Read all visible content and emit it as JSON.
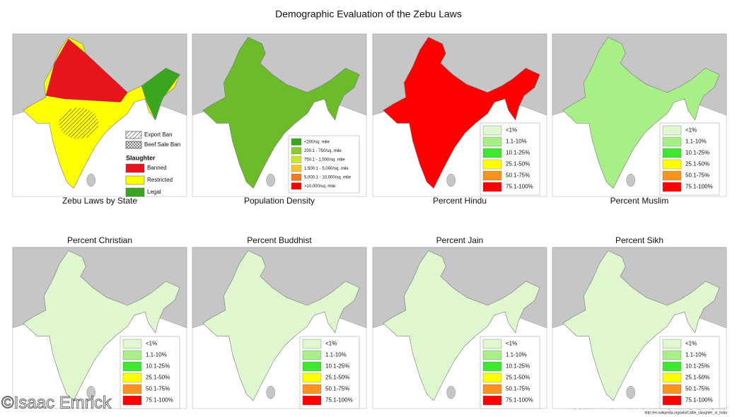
{
  "title": "Demographic Evaluation of the Zebu Laws",
  "panels": [
    {
      "caption": "Zebu Laws by State",
      "map_color": "#ffff00",
      "legend": {
        "hatch_items": [
          "Export Ban",
          "Beef Sale Ban"
        ],
        "heading": "Slaughter",
        "items": [
          {
            "label": "Banned",
            "color": "#e8141b"
          },
          {
            "label": "Restricted",
            "color": "#ffff00"
          },
          {
            "label": "Legal",
            "color": "#3aa61f"
          }
        ]
      }
    },
    {
      "caption": "Population Density",
      "map_color": "#6cbb2a",
      "legend": {
        "items": [
          {
            "label": "<200/sq. mile",
            "color": "#3aa61f"
          },
          {
            "label": "200.1 - 750/sq. mile",
            "color": "#8ccc2c"
          },
          {
            "label": "750.1 - 1,500/sq. mile",
            "color": "#cde62d"
          },
          {
            "label": "1,500.1 - 5,000/sq. mile",
            "color": "#f7c52a"
          },
          {
            "label": "5,000.1 - 10,000/sq. mile",
            "color": "#f07a1e"
          },
          {
            "label": ">10,000/sq. mile",
            "color": "#ff0000"
          }
        ]
      }
    },
    {
      "caption": "Percent Hindu",
      "map_color": "#ff0000",
      "legend": {
        "items": [
          {
            "label": "<1%",
            "color": "#e0f8d0"
          },
          {
            "label": "1.1-10%",
            "color": "#a8ef88"
          },
          {
            "label": "10.1-25%",
            "color": "#3ee830"
          },
          {
            "label": "25.1-50%",
            "color": "#ffff00"
          },
          {
            "label": "50.1-75%",
            "color": "#f7931e"
          },
          {
            "label": "75.1-100%",
            "color": "#ff0000"
          }
        ]
      }
    },
    {
      "caption": "Percent Muslim",
      "map_color": "#a8ef88",
      "legend": {
        "items": [
          {
            "label": "<1%",
            "color": "#e0f8d0"
          },
          {
            "label": "1.1-10%",
            "color": "#a8ef88"
          },
          {
            "label": "10.1-25%",
            "color": "#3ee830"
          },
          {
            "label": "25.1-50%",
            "color": "#ffff00"
          },
          {
            "label": "50.1-75%",
            "color": "#f7931e"
          },
          {
            "label": "75.1-100%",
            "color": "#ff0000"
          }
        ]
      }
    },
    {
      "caption": "Percent Christian",
      "map_color": "#e0f8d0",
      "legend": {
        "items": [
          {
            "label": "<1%",
            "color": "#e0f8d0"
          },
          {
            "label": "1.1-10%",
            "color": "#a8ef88"
          },
          {
            "label": "10.1-25%",
            "color": "#3ee830"
          },
          {
            "label": "25.1-50%",
            "color": "#ffff00"
          },
          {
            "label": "50.1-75%",
            "color": "#f7931e"
          },
          {
            "label": "75.1-100%",
            "color": "#ff0000"
          }
        ]
      }
    },
    {
      "caption": "Percent Buddhist",
      "map_color": "#e0f8d0",
      "legend": {
        "items": [
          {
            "label": "<1%",
            "color": "#e0f8d0"
          },
          {
            "label": "1.1-10%",
            "color": "#a8ef88"
          },
          {
            "label": "10.1-25%",
            "color": "#3ee830"
          },
          {
            "label": "25.1-50%",
            "color": "#ffff00"
          },
          {
            "label": "50.1-75%",
            "color": "#f7931e"
          },
          {
            "label": "75.1-100%",
            "color": "#ff0000"
          }
        ]
      }
    },
    {
      "caption": "Percent Jain",
      "map_color": "#e0f8d0",
      "legend": {
        "items": [
          {
            "label": "<1%",
            "color": "#e0f8d0"
          },
          {
            "label": "1.1-10%",
            "color": "#a8ef88"
          },
          {
            "label": "10.1-25%",
            "color": "#3ee830"
          },
          {
            "label": "25.1-50%",
            "color": "#ffff00"
          },
          {
            "label": "50.1-75%",
            "color": "#f7931e"
          },
          {
            "label": "75.1-100%",
            "color": "#ff0000"
          }
        ]
      }
    },
    {
      "caption": "Percent Sikh",
      "map_color": "#e0f8d0",
      "legend": {
        "items": [
          {
            "label": "<1%",
            "color": "#e0f8d0"
          },
          {
            "label": "1.1-10%",
            "color": "#a8ef88"
          },
          {
            "label": "10.1-25%",
            "color": "#3ee830"
          },
          {
            "label": "25.1-50%",
            "color": "#ffff00"
          },
          {
            "label": "50.1-75%",
            "color": "#f7931e"
          },
          {
            "label": "75.1-100%",
            "color": "#ff0000"
          }
        ]
      }
    }
  ],
  "credits": [
    "Map by Isaac Emrick, ©2013. From Data at: http://censusindia.gov.in/Census_And_You/religion.aspx",
    "http://en.wikipedia.org/wiki/Cattle_slaughter_in_India"
  ],
  "watermark": "©Isaac Emrick"
}
